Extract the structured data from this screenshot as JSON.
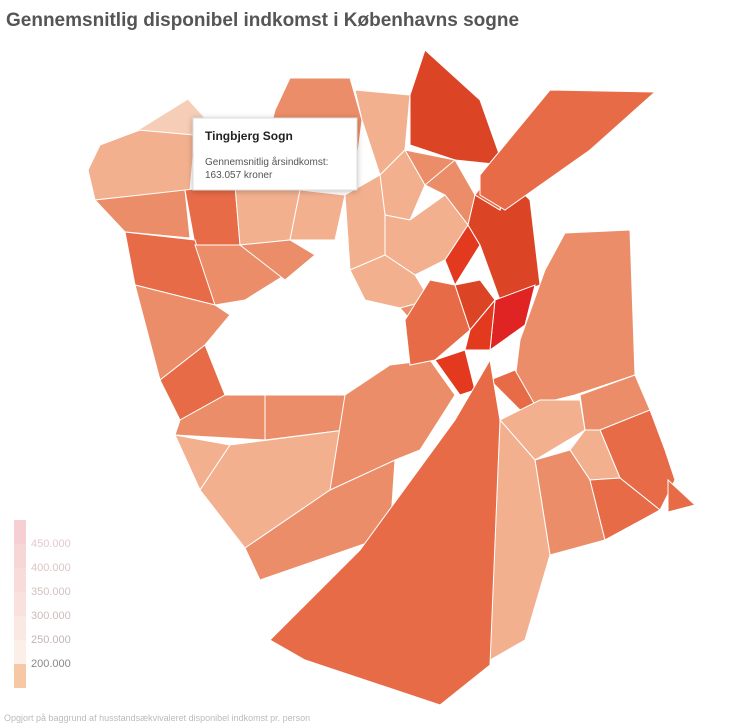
{
  "title": "Gennemsnitlig disponibel indkomst i Københavns sogne",
  "tooltip": {
    "name": "Tingbjerg Sogn",
    "label": "Gennemsnitlig årsindkomst:",
    "value": "163.057 kroner"
  },
  "legend": {
    "labels": [
      "450.000",
      "400.000",
      "350.000",
      "300.000",
      "250.000",
      "200.000"
    ]
  },
  "footer": "Opgjort på baggrund af husstandsækvivaleret disponibel indkomst pr. person"
}
